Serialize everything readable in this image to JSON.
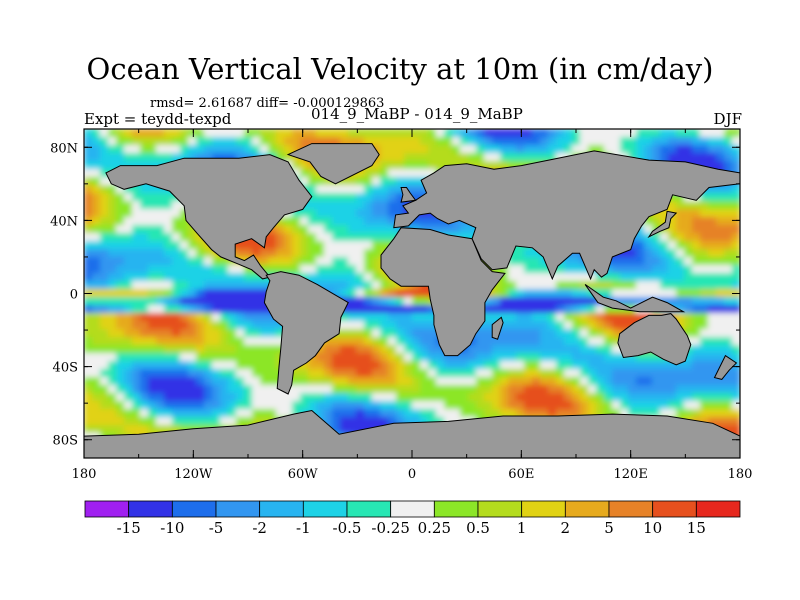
{
  "title": "Ocean Vertical Velocity at 10m (in cm/day)",
  "stats": "rmsd= 2.61687 diff= -0.000129863",
  "experiment": "Expt = teydd-texpd",
  "subtitle": "014_9_MaBP - 014_9_MaBP",
  "season": "DJF",
  "y_axis_labels": [
    "80N",
    "40N",
    "0",
    "40S",
    "80S"
  ],
  "x_axis_labels": [
    "180",
    "120W",
    "60W",
    "0",
    "60E",
    "120E",
    "180"
  ],
  "colorbar": {
    "colors": [
      "#a020f0",
      "#3232e6",
      "#1e6eeb",
      "#3296f0",
      "#28b4f0",
      "#1ed2e6",
      "#28e6b4",
      "#f0f0f0",
      "#8ce628",
      "#b4dc1e",
      "#e1d214",
      "#e6aa1e",
      "#e68228",
      "#e6501e",
      "#e6281e"
    ],
    "labels": [
      "-15",
      "-10",
      "-5",
      "-2",
      "-1",
      "-0.5",
      "-0.25",
      "0.25",
      "0.5",
      "1",
      "2",
      "5",
      "10",
      "15"
    ]
  },
  "land_color": "#999999"
}
